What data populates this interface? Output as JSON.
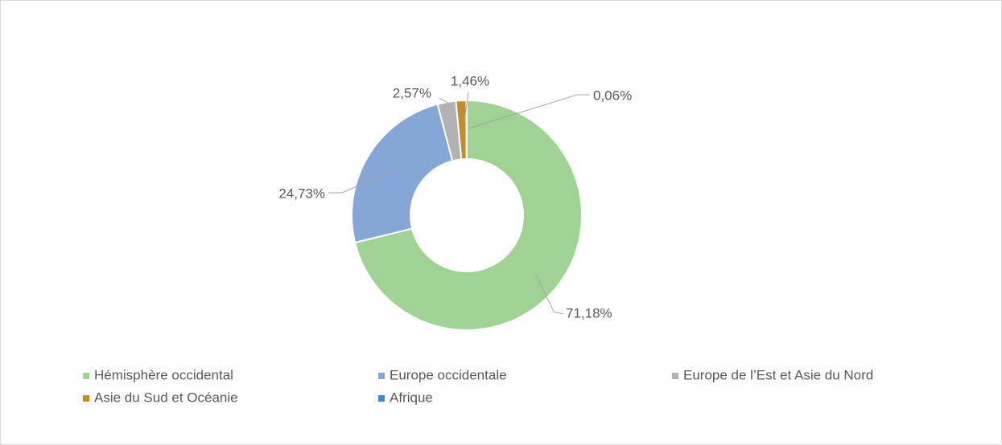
{
  "chart_data": {
    "type": "donut",
    "categories": [
      "Hémisphère occidental",
      "Europe occidentale",
      "Europe de l’Est et Asie du Nord",
      "Asie du Sud et Océanie",
      "Afrique"
    ],
    "values": [
      71.18,
      24.73,
      2.57,
      1.46,
      0.06
    ],
    "value_labels": [
      "71,18%",
      "24,73%",
      "2,57%",
      "1,46%",
      "0,06%"
    ],
    "colors": [
      "#9fd293",
      "#86a6d8",
      "#b2b2b2",
      "#c38c2c",
      "#3d8bd1"
    ],
    "legend": "bottom"
  }
}
